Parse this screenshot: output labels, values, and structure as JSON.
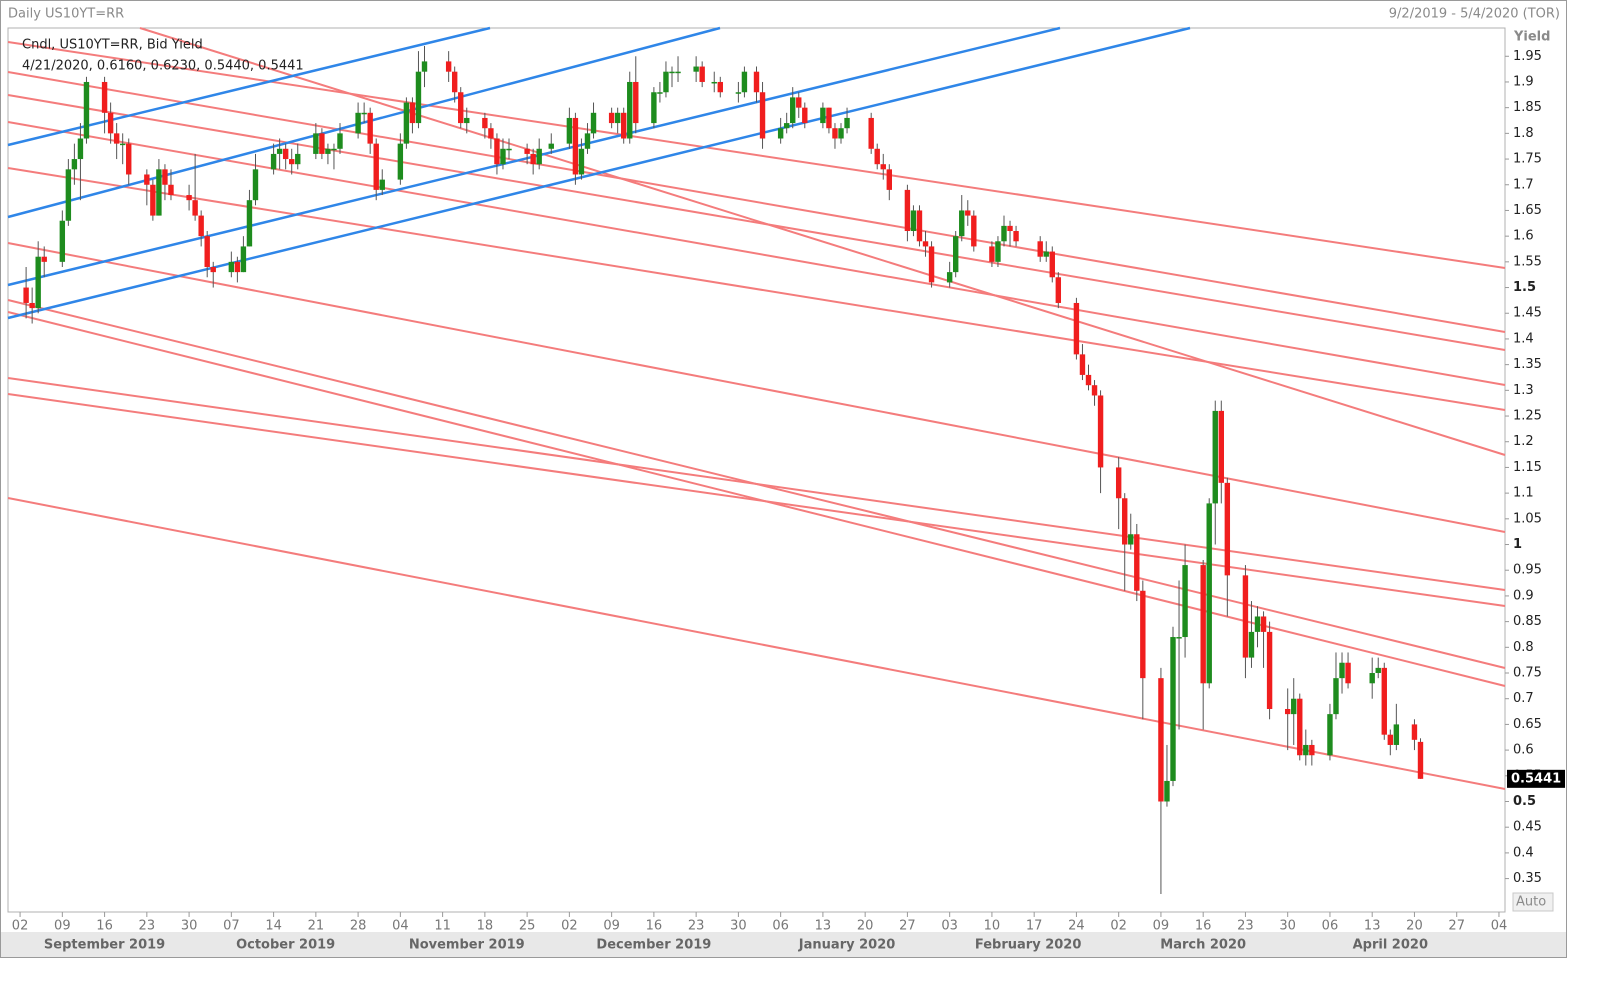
{
  "chart_data": {
    "type": "candlestick",
    "title": "Daily US10YT=RR",
    "date_range": "9/2/2019 - 5/4/2020 (TOR)",
    "series_label": "Cndl, US10YT=RR, Bid Yield",
    "last_quote": "4/21/2020, 0.6160, 0.6230, 0.5440, 0.5441",
    "y_label": "Yield",
    "scale_label": "Auto",
    "up_color": "#1e8c1e",
    "down_color": "#f01e1e",
    "ylim": [
      0.285,
      2.005
    ],
    "yticks": [
      0.35,
      0.4,
      0.45,
      0.5,
      0.55,
      0.6,
      0.65,
      0.7,
      0.75,
      0.8,
      0.85,
      0.9,
      0.95,
      1,
      1.05,
      1.1,
      1.15,
      1.2,
      1.25,
      1.3,
      1.35,
      1.4,
      1.45,
      1.5,
      1.55,
      1.6,
      1.65,
      1.7,
      1.75,
      1.8,
      1.85,
      1.9,
      1.95
    ],
    "xlim": [
      "2019-08-31",
      "2020-05-05"
    ],
    "xticks": [
      {
        "value": "2019-09-02",
        "label": "02"
      },
      {
        "value": "2019-09-09",
        "label": "09"
      },
      {
        "value": "2019-09-16",
        "label": "16"
      },
      {
        "value": "2019-09-23",
        "label": "23"
      },
      {
        "value": "2019-09-30",
        "label": "30"
      },
      {
        "value": "2019-10-07",
        "label": "07"
      },
      {
        "value": "2019-10-14",
        "label": "14"
      },
      {
        "value": "2019-10-21",
        "label": "21"
      },
      {
        "value": "2019-10-28",
        "label": "28"
      },
      {
        "value": "2019-11-04",
        "label": "04"
      },
      {
        "value": "2019-11-11",
        "label": "11"
      },
      {
        "value": "2019-11-18",
        "label": "18"
      },
      {
        "value": "2019-11-25",
        "label": "25"
      },
      {
        "value": "2019-12-02",
        "label": "02"
      },
      {
        "value": "2019-12-09",
        "label": "09"
      },
      {
        "value": "2019-12-16",
        "label": "16"
      },
      {
        "value": "2019-12-23",
        "label": "23"
      },
      {
        "value": "2019-12-30",
        "label": "30"
      },
      {
        "value": "2020-01-06",
        "label": "06"
      },
      {
        "value": "2020-01-13",
        "label": "13"
      },
      {
        "value": "2020-01-20",
        "label": "20"
      },
      {
        "value": "2020-01-27",
        "label": "27"
      },
      {
        "value": "2020-02-03",
        "label": "03"
      },
      {
        "value": "2020-02-10",
        "label": "10"
      },
      {
        "value": "2020-02-17",
        "label": "17"
      },
      {
        "value": "2020-02-24",
        "label": "24"
      },
      {
        "value": "2020-03-02",
        "label": "02"
      },
      {
        "value": "2020-03-09",
        "label": "09"
      },
      {
        "value": "2020-03-16",
        "label": "16"
      },
      {
        "value": "2020-03-23",
        "label": "23"
      },
      {
        "value": "2020-03-30",
        "label": "30"
      },
      {
        "value": "2020-04-06",
        "label": "06"
      },
      {
        "value": "2020-04-13",
        "label": "13"
      },
      {
        "value": "2020-04-20",
        "label": "20"
      },
      {
        "value": "2020-04-27",
        "label": "27"
      },
      {
        "value": "2020-05-04",
        "label": "04"
      }
    ],
    "month_labels": [
      {
        "value": "2019-09-16",
        "label": "September 2019"
      },
      {
        "value": "2019-10-16",
        "label": "October 2019"
      },
      {
        "value": "2019-11-15",
        "label": "November 2019"
      },
      {
        "value": "2019-12-16",
        "label": "December 2019"
      },
      {
        "value": "2020-01-17",
        "label": "January 2020"
      },
      {
        "value": "2020-02-16",
        "label": "February 2020"
      },
      {
        "value": "2020-03-16",
        "label": "March 2020"
      },
      {
        "value": "2020-04-16",
        "label": "April 2020"
      }
    ],
    "x": [
      "2019-09-03",
      "2019-09-04",
      "2019-09-05",
      "2019-09-06",
      "2019-09-09",
      "2019-09-10",
      "2019-09-11",
      "2019-09-12",
      "2019-09-13",
      "2019-09-16",
      "2019-09-17",
      "2019-09-18",
      "2019-09-19",
      "2019-09-20",
      "2019-09-23",
      "2019-09-24",
      "2019-09-25",
      "2019-09-26",
      "2019-09-27",
      "2019-09-30",
      "2019-10-01",
      "2019-10-02",
      "2019-10-03",
      "2019-10-04",
      "2019-10-07",
      "2019-10-08",
      "2019-10-09",
      "2019-10-10",
      "2019-10-11",
      "2019-10-14",
      "2019-10-15",
      "2019-10-16",
      "2019-10-17",
      "2019-10-18",
      "2019-10-21",
      "2019-10-22",
      "2019-10-23",
      "2019-10-24",
      "2019-10-25",
      "2019-10-28",
      "2019-10-29",
      "2019-10-30",
      "2019-10-31",
      "2019-11-01",
      "2019-11-04",
      "2019-11-05",
      "2019-11-06",
      "2019-11-07",
      "2019-11-08",
      "2019-11-12",
      "2019-11-13",
      "2019-11-14",
      "2019-11-15",
      "2019-11-18",
      "2019-11-19",
      "2019-11-20",
      "2019-11-21",
      "2019-11-22",
      "2019-11-25",
      "2019-11-26",
      "2019-11-27",
      "2019-11-29",
      "2019-12-02",
      "2019-12-03",
      "2019-12-04",
      "2019-12-05",
      "2019-12-06",
      "2019-12-09",
      "2019-12-10",
      "2019-12-11",
      "2019-12-12",
      "2019-12-13",
      "2019-12-16",
      "2019-12-17",
      "2019-12-18",
      "2019-12-19",
      "2019-12-20",
      "2019-12-23",
      "2019-12-24",
      "2019-12-26",
      "2019-12-27",
      "2019-12-30",
      "2019-12-31",
      "2020-01-02",
      "2020-01-03",
      "2020-01-06",
      "2020-01-07",
      "2020-01-08",
      "2020-01-09",
      "2020-01-10",
      "2020-01-13",
      "2020-01-14",
      "2020-01-15",
      "2020-01-16",
      "2020-01-17",
      "2020-01-21",
      "2020-01-22",
      "2020-01-23",
      "2020-01-24",
      "2020-01-27",
      "2020-01-28",
      "2020-01-29",
      "2020-01-30",
      "2020-01-31",
      "2020-02-03",
      "2020-02-04",
      "2020-02-05",
      "2020-02-06",
      "2020-02-07",
      "2020-02-10",
      "2020-02-11",
      "2020-02-12",
      "2020-02-13",
      "2020-02-14",
      "2020-02-18",
      "2020-02-19",
      "2020-02-20",
      "2020-02-21",
      "2020-02-24",
      "2020-02-25",
      "2020-02-26",
      "2020-02-27",
      "2020-02-28",
      "2020-03-02",
      "2020-03-03",
      "2020-03-04",
      "2020-03-05",
      "2020-03-06",
      "2020-03-09",
      "2020-03-10",
      "2020-03-11",
      "2020-03-12",
      "2020-03-13",
      "2020-03-16",
      "2020-03-17",
      "2020-03-18",
      "2020-03-19",
      "2020-03-20",
      "2020-03-23",
      "2020-03-24",
      "2020-03-25",
      "2020-03-26",
      "2020-03-27",
      "2020-03-30",
      "2020-03-31",
      "2020-04-01",
      "2020-04-02",
      "2020-04-03",
      "2020-04-06",
      "2020-04-07",
      "2020-04-08",
      "2020-04-09",
      "2020-04-13",
      "2020-04-14",
      "2020-04-15",
      "2020-04-16",
      "2020-04-17",
      "2020-04-20",
      "2020-04-21"
    ],
    "open": [
      1.5,
      1.47,
      1.46,
      1.56,
      1.55,
      1.63,
      1.73,
      1.75,
      1.79,
      1.9,
      1.84,
      1.8,
      1.78,
      1.78,
      1.72,
      1.7,
      1.64,
      1.73,
      1.7,
      1.68,
      1.67,
      1.64,
      1.6,
      1.54,
      1.53,
      1.55,
      1.53,
      1.58,
      1.67,
      1.73,
      1.76,
      1.77,
      1.75,
      1.74,
      1.76,
      1.8,
      1.76,
      1.77,
      1.77,
      1.8,
      1.84,
      1.84,
      1.78,
      1.69,
      1.71,
      1.78,
      1.86,
      1.82,
      1.92,
      1.94,
      1.92,
      1.88,
      1.82,
      1.83,
      1.81,
      1.79,
      1.74,
      1.77,
      1.77,
      1.76,
      1.74,
      1.77,
      1.78,
      1.83,
      1.72,
      1.77,
      1.8,
      1.84,
      1.82,
      1.84,
      1.79,
      1.9,
      1.82,
      1.88,
      1.88,
      1.92,
      1.92,
      1.92,
      1.93,
      1.9,
      1.9,
      1.88,
      1.88,
      1.92,
      1.88,
      1.79,
      1.81,
      1.82,
      1.87,
      1.85,
      1.82,
      1.85,
      1.81,
      1.79,
      1.81,
      1.83,
      1.77,
      1.74,
      1.73,
      1.69,
      1.61,
      1.65,
      1.59,
      1.58,
      1.51,
      1.53,
      1.6,
      1.65,
      1.64,
      1.58,
      1.55,
      1.59,
      1.62,
      1.61,
      1.59,
      1.56,
      1.57,
      1.52,
      1.47,
      1.37,
      1.33,
      1.31,
      1.29,
      1.15,
      1.09,
      1.0,
      1.02,
      0.91,
      0.74,
      0.5,
      0.54,
      0.82,
      0.82,
      0.96,
      0.73,
      1.08,
      1.26,
      1.12,
      0.94,
      0.78,
      0.83,
      0.86,
      0.83,
      0.68,
      0.67,
      0.7,
      0.59,
      0.61,
      0.59,
      0.67,
      0.74,
      0.77,
      0.73,
      0.75,
      0.76,
      0.63,
      0.61,
      0.65,
      0.616
    ],
    "high": [
      1.54,
      1.5,
      1.59,
      1.58,
      1.65,
      1.75,
      1.78,
      1.82,
      1.91,
      1.91,
      1.86,
      1.82,
      1.8,
      1.79,
      1.73,
      1.71,
      1.75,
      1.74,
      1.73,
      1.7,
      1.76,
      1.65,
      1.61,
      1.55,
      1.57,
      1.56,
      1.6,
      1.69,
      1.76,
      1.78,
      1.79,
      1.78,
      1.77,
      1.78,
      1.82,
      1.81,
      1.78,
      1.78,
      1.82,
      1.86,
      1.86,
      1.85,
      1.79,
      1.73,
      1.8,
      1.87,
      1.87,
      1.96,
      1.97,
      1.96,
      1.93,
      1.89,
      1.85,
      1.84,
      1.82,
      1.8,
      1.79,
      1.79,
      1.78,
      1.77,
      1.79,
      1.8,
      1.85,
      1.84,
      1.79,
      1.82,
      1.86,
      1.85,
      1.85,
      1.85,
      1.92,
      1.95,
      1.89,
      1.9,
      1.94,
      1.93,
      1.95,
      1.95,
      1.94,
      1.92,
      1.91,
      1.9,
      1.93,
      1.93,
      1.9,
      1.83,
      1.84,
      1.89,
      1.88,
      1.86,
      1.86,
      1.85,
      1.82,
      1.82,
      1.85,
      1.84,
      1.78,
      1.76,
      1.74,
      1.7,
      1.66,
      1.66,
      1.61,
      1.59,
      1.55,
      1.61,
      1.68,
      1.67,
      1.65,
      1.59,
      1.6,
      1.64,
      1.63,
      1.62,
      1.6,
      1.59,
      1.58,
      1.53,
      1.48,
      1.39,
      1.35,
      1.32,
      1.3,
      1.17,
      1.1,
      1.06,
      1.04,
      0.93,
      0.76,
      0.61,
      0.84,
      0.93,
      1.0,
      0.97,
      1.09,
      1.28,
      1.28,
      1.13,
      0.96,
      0.89,
      0.88,
      0.87,
      0.85,
      0.72,
      0.74,
      0.71,
      0.64,
      0.62,
      0.69,
      0.79,
      0.79,
      0.79,
      0.78,
      0.78,
      0.77,
      0.64,
      0.69,
      0.66,
      0.623
    ],
    "low": [
      1.44,
      1.43,
      1.45,
      1.52,
      1.54,
      1.62,
      1.7,
      1.67,
      1.78,
      1.8,
      1.78,
      1.75,
      1.74,
      1.7,
      1.66,
      1.63,
      1.64,
      1.67,
      1.67,
      1.65,
      1.63,
      1.58,
      1.52,
      1.5,
      1.52,
      1.51,
      1.53,
      1.58,
      1.66,
      1.72,
      1.73,
      1.73,
      1.72,
      1.73,
      1.75,
      1.75,
      1.74,
      1.73,
      1.76,
      1.79,
      1.82,
      1.76,
      1.67,
      1.68,
      1.7,
      1.77,
      1.8,
      1.81,
      1.89,
      1.9,
      1.86,
      1.81,
      1.8,
      1.79,
      1.77,
      1.72,
      1.73,
      1.75,
      1.74,
      1.72,
      1.73,
      1.76,
      1.77,
      1.7,
      1.71,
      1.76,
      1.79,
      1.81,
      1.8,
      1.78,
      1.78,
      1.8,
      1.81,
      1.86,
      1.87,
      1.89,
      1.9,
      1.9,
      1.89,
      1.88,
      1.87,
      1.86,
      1.87,
      1.86,
      1.77,
      1.78,
      1.8,
      1.81,
      1.83,
      1.81,
      1.81,
      1.8,
      1.77,
      1.78,
      1.8,
      1.76,
      1.73,
      1.71,
      1.67,
      1.59,
      1.6,
      1.58,
      1.56,
      1.5,
      1.5,
      1.52,
      1.59,
      1.62,
      1.57,
      1.54,
      1.54,
      1.58,
      1.58,
      1.58,
      1.55,
      1.55,
      1.51,
      1.46,
      1.36,
      1.32,
      1.3,
      1.27,
      1.1,
      1.03,
      0.91,
      0.99,
      0.89,
      0.66,
      0.32,
      0.49,
      0.53,
      0.64,
      0.78,
      0.64,
      0.72,
      1.0,
      1.08,
      0.86,
      0.74,
      0.76,
      0.8,
      0.76,
      0.66,
      0.6,
      0.61,
      0.58,
      0.57,
      0.57,
      0.58,
      0.66,
      0.71,
      0.72,
      0.7,
      0.74,
      0.62,
      0.59,
      0.6,
      0.6,
      0.544
    ],
    "close": [
      1.47,
      1.46,
      1.56,
      1.55,
      1.63,
      1.73,
      1.75,
      1.79,
      1.9,
      1.84,
      1.8,
      1.78,
      1.78,
      1.72,
      1.7,
      1.64,
      1.73,
      1.7,
      1.68,
      1.67,
      1.64,
      1.6,
      1.54,
      1.53,
      1.55,
      1.53,
      1.58,
      1.67,
      1.73,
      1.76,
      1.77,
      1.75,
      1.74,
      1.76,
      1.8,
      1.76,
      1.77,
      1.77,
      1.8,
      1.84,
      1.84,
      1.78,
      1.69,
      1.71,
      1.78,
      1.86,
      1.82,
      1.92,
      1.94,
      1.92,
      1.88,
      1.82,
      1.83,
      1.81,
      1.79,
      1.74,
      1.77,
      1.77,
      1.76,
      1.74,
      1.77,
      1.78,
      1.83,
      1.72,
      1.77,
      1.8,
      1.84,
      1.82,
      1.84,
      1.79,
      1.9,
      1.82,
      1.88,
      1.88,
      1.92,
      1.92,
      1.92,
      1.93,
      1.9,
      1.9,
      1.88,
      1.88,
      1.92,
      1.88,
      1.79,
      1.81,
      1.82,
      1.87,
      1.85,
      1.82,
      1.85,
      1.81,
      1.79,
      1.81,
      1.83,
      1.77,
      1.74,
      1.73,
      1.69,
      1.61,
      1.65,
      1.59,
      1.58,
      1.51,
      1.53,
      1.6,
      1.65,
      1.64,
      1.58,
      1.55,
      1.59,
      1.62,
      1.61,
      1.59,
      1.56,
      1.57,
      1.52,
      1.47,
      1.37,
      1.33,
      1.31,
      1.29,
      1.15,
      1.09,
      1.0,
      1.02,
      0.91,
      0.74,
      0.5,
      0.54,
      0.82,
      0.82,
      0.96,
      0.73,
      1.08,
      1.26,
      1.12,
      0.94,
      0.78,
      0.83,
      0.86,
      0.83,
      0.68,
      0.67,
      0.7,
      0.59,
      0.61,
      0.59,
      0.67,
      0.74,
      0.77,
      0.73,
      0.75,
      0.76,
      0.63,
      0.61,
      0.65,
      0.62,
      0.5441
    ]
  }
}
